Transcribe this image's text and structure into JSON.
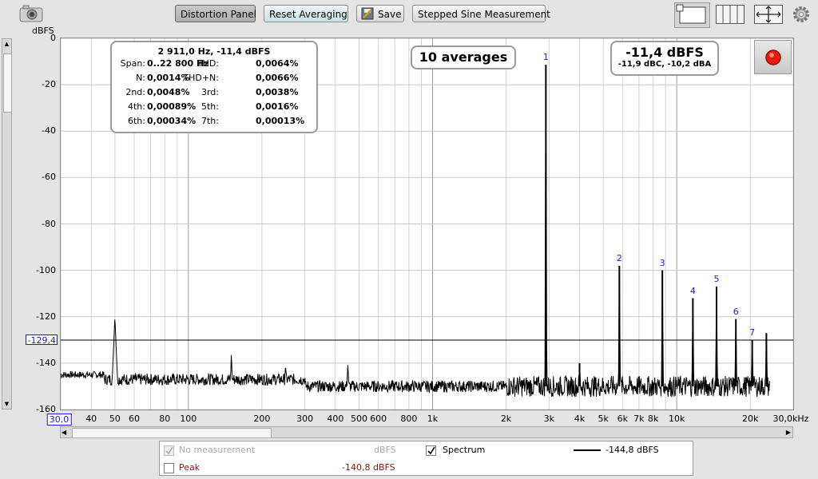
{
  "toolbar": {
    "buttons": [
      "Distortion Panel",
      "Reset Averaging",
      "Save",
      "Stepped Sine Measurement"
    ],
    "camera_icon": "camera-icon",
    "save_icon": "save-icon",
    "view_icons": [
      "window-layout-icon",
      "columns-icon",
      "move-arrows-icon",
      "gear-icon"
    ]
  },
  "axis": {
    "y_unit": "dBFS",
    "y_ticks": [
      "0",
      "-20",
      "-40",
      "-60",
      "-80",
      "-100",
      "-120",
      "-140",
      "-160"
    ],
    "x_ticks": [
      "30,0",
      "40",
      "50",
      "60",
      "80",
      "100",
      "200",
      "300",
      "400",
      "500",
      "600",
      "800",
      "1k",
      "2k",
      "3k",
      "4k",
      "5k",
      "6k",
      "7k",
      "8k",
      "10k",
      "20k",
      "30,0kHz"
    ],
    "cursor_level": "-129,4"
  },
  "distortion_box": {
    "header": "2 911,0 Hz, -11,4 dBFS",
    "rows": [
      [
        "Span:",
        "0..22 800 Hz",
        "THD:",
        "0,0064%"
      ],
      [
        "N:",
        "0,0014%",
        "THD+N:",
        "0,0066%"
      ],
      [
        "2nd:",
        "0,0048%",
        "3rd:",
        "0,0038%"
      ],
      [
        "4th:",
        "0,00089%",
        "5th:",
        "0,0016%"
      ],
      [
        "6th:",
        "0,00034%",
        "7th:",
        "0,00013%"
      ]
    ]
  },
  "averages": "10 averages",
  "level_box": {
    "main": "-11,4 dBFS",
    "sub": "-11,9 dBC, -10,2 dBA"
  },
  "harmonic_labels": [
    "1",
    "2",
    "3",
    "4",
    "5",
    "6",
    "7"
  ],
  "legend": {
    "no_measurement": "No measurement",
    "no_measurement_unit": "dBFS",
    "peak": "Peak",
    "peak_value": "-140,8 dBFS",
    "spectrum": "Spectrum",
    "spectrum_value": "-144,8 dBFS"
  },
  "colors": {
    "accent_blue": "#1a1ad6",
    "peak_red": "#8a1010",
    "record_red": "#e81b0a"
  },
  "chart_data": {
    "type": "line",
    "xscale": "log",
    "xlim": [
      30,
      30000
    ],
    "ylim": [
      -160,
      0
    ],
    "ylabel": "dBFS",
    "grid": true,
    "series": [
      {
        "name": "Spectrum",
        "noise_floor_db": -150,
        "peaks": [
          {
            "freq": 50,
            "db": -120
          },
          {
            "freq": 150,
            "db": -135
          },
          {
            "freq": 250,
            "db": -140
          },
          {
            "freq": 450,
            "db": -140
          },
          {
            "freq": 2911,
            "db": -11.4,
            "label": "1"
          },
          {
            "freq": 4000,
            "db": -140
          },
          {
            "freq": 5822,
            "db": -98,
            "label": "2"
          },
          {
            "freq": 8733,
            "db": -100,
            "label": "3"
          },
          {
            "freq": 11644,
            "db": -112,
            "label": "4"
          },
          {
            "freq": 14555,
            "db": -107,
            "label": "5"
          },
          {
            "freq": 17466,
            "db": -121,
            "label": "6"
          },
          {
            "freq": 20377,
            "db": -130,
            "label": "7"
          },
          {
            "freq": 23288,
            "db": -127
          }
        ]
      }
    ]
  }
}
